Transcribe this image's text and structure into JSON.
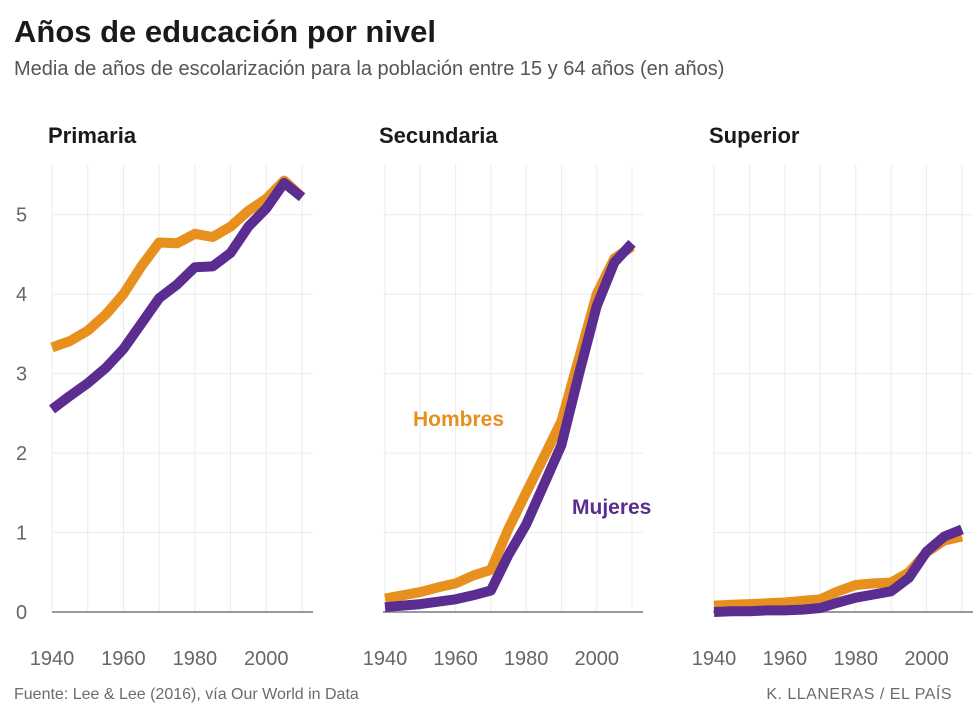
{
  "title": "Años de educación por nivel",
  "subtitle": "Media de años de escolarización para la población entre 15 y 64 años (en años)",
  "source": "Fuente: Lee & Lee (2016), vía Our World in Data",
  "credit": "K. LLANERAS  /  EL PAÍS",
  "colors": {
    "hombres": "#E8901E",
    "mujeres": "#5C2D91",
    "grid": "#ebebeb",
    "axis": "#9a9a9a",
    "tick": "#666666"
  },
  "chart_data": {
    "type": "line",
    "x_ticks": [
      1940,
      1960,
      1980,
      2000
    ],
    "xlim": [
      1940,
      2010
    ],
    "y_ticks": [
      0,
      1,
      2,
      3,
      4,
      5
    ],
    "ylim": [
      0,
      5.5
    ],
    "labels": {
      "hombres": "Hombres",
      "mujeres": "Mujeres"
    },
    "panels": [
      {
        "name": "Primaria",
        "x": [
          1940,
          1945,
          1950,
          1955,
          1960,
          1965,
          1970,
          1975,
          1980,
          1985,
          1990,
          1995,
          2000,
          2005,
          2010
        ],
        "series": [
          {
            "name": "Hombres",
            "values": [
              3.33,
              3.41,
              3.54,
              3.74,
              4.0,
              4.35,
              4.65,
              4.64,
              4.76,
              4.72,
              4.85,
              5.05,
              5.2,
              5.43,
              5.22
            ]
          },
          {
            "name": "Mujeres",
            "values": [
              2.55,
              2.72,
              2.88,
              3.07,
              3.31,
              3.63,
              3.95,
              4.12,
              4.34,
              4.35,
              4.52,
              4.85,
              5.08,
              5.4,
              5.22
            ]
          }
        ]
      },
      {
        "name": "Secundaria",
        "x": [
          1940,
          1945,
          1950,
          1955,
          1960,
          1965,
          1970,
          1975,
          1980,
          1985,
          1990,
          1995,
          2000,
          2005,
          2010
        ],
        "series": [
          {
            "name": "Hombres",
            "values": [
              0.17,
              0.21,
              0.25,
              0.31,
              0.36,
              0.46,
              0.53,
              1.05,
              1.5,
              1.95,
              2.4,
              3.2,
              4.0,
              4.45,
              4.6
            ]
          },
          {
            "name": "Mujeres",
            "values": [
              0.06,
              0.08,
              0.1,
              0.13,
              0.16,
              0.21,
              0.27,
              0.72,
              1.1,
              1.6,
              2.1,
              3.0,
              3.85,
              4.4,
              4.64
            ]
          }
        ]
      },
      {
        "name": "Superior",
        "x": [
          1940,
          1945,
          1950,
          1955,
          1960,
          1965,
          1970,
          1975,
          1980,
          1985,
          1990,
          1995,
          2000,
          2005,
          2010
        ],
        "series": [
          {
            "name": "Hombres",
            "values": [
              0.08,
              0.09,
              0.1,
              0.11,
              0.12,
              0.14,
              0.16,
              0.26,
              0.34,
              0.36,
              0.37,
              0.5,
              0.75,
              0.9,
              0.95
            ]
          },
          {
            "name": "Mujeres",
            "values": [
              0.0,
              0.01,
              0.01,
              0.02,
              0.02,
              0.03,
              0.05,
              0.12,
              0.18,
              0.22,
              0.26,
              0.43,
              0.76,
              0.95,
              1.04
            ]
          }
        ]
      }
    ]
  }
}
